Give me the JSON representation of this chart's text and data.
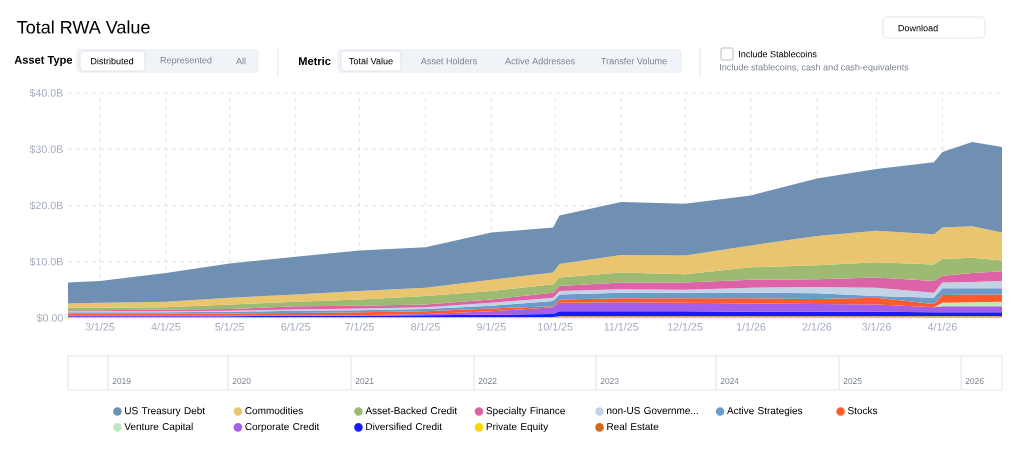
{
  "chart_data": {
    "type": "area",
    "title": "Total RWA Value",
    "stacked": true,
    "grid": true,
    "legend": "bottom",
    "annotations": [
      "Download",
      "Asset Type",
      "Distributed",
      "Represented",
      "All",
      "Metric",
      "Total Value",
      "Asset Holders",
      "Active Addresses",
      "Transfer Volume",
      "Include Stablecoins",
      "Include stablecoins, cash and cash-equivalents",
      "2019",
      "2020",
      "2021",
      "2022",
      "2023",
      "2024",
      "2025",
      "2026"
    ],
    "xlim": [
      "2025-02-14",
      "2026-04-29"
    ],
    "xticks": [
      {
        "value": "2025-03-01",
        "label": "3/1/25"
      },
      {
        "value": "2025-04-01",
        "label": "4/1/25"
      },
      {
        "value": "2025-05-01",
        "label": "5/1/25"
      },
      {
        "value": "2025-06-01",
        "label": "6/1/25"
      },
      {
        "value": "2025-07-01",
        "label": "7/1/25"
      },
      {
        "value": "2025-08-01",
        "label": "8/1/25"
      },
      {
        "value": "2025-09-01",
        "label": "9/1/25"
      },
      {
        "value": "2025-10-01",
        "label": "10/1/25"
      },
      {
        "value": "2025-11-01",
        "label": "11/1/25"
      },
      {
        "value": "2025-12-01",
        "label": "12/1/25"
      },
      {
        "value": "2026-01-01",
        "label": "1/1/26"
      },
      {
        "value": "2026-02-01",
        "label": "2/1/26"
      },
      {
        "value": "2026-03-01",
        "label": "3/1/26"
      },
      {
        "value": "2026-04-01",
        "label": "4/1/26"
      }
    ],
    "ylim": [
      0,
      40
    ],
    "yticks": [
      {
        "value": 0,
        "label": "$0.00"
      },
      {
        "value": 10,
        "label": "$10.0B"
      },
      {
        "value": 20,
        "label": "$20.0B"
      },
      {
        "value": 30,
        "label": "$30.0B"
      },
      {
        "value": 40,
        "label": "$40.0B"
      }
    ],
    "x": [
      "2025-02-14",
      "2025-03-01",
      "2025-04-01",
      "2025-05-01",
      "2025-06-01",
      "2025-07-01",
      "2025-08-01",
      "2025-09-01",
      "2025-09-30",
      "2025-10-03",
      "2025-11-01",
      "2025-12-01",
      "2026-01-01",
      "2026-02-01",
      "2026-03-01",
      "2026-03-28",
      "2026-04-01",
      "2026-04-15",
      "2026-04-29"
    ],
    "series": [
      {
        "name": "Real Estate",
        "color": "#d2691e",
        "values": [
          0.1,
          0.1,
          0.1,
          0.1,
          0.1,
          0.1,
          0.1,
          0.1,
          0.1,
          0.1,
          0.1,
          0.1,
          0.1,
          0.1,
          0.1,
          0.1,
          0.1,
          0.1,
          0.1
        ]
      },
      {
        "name": "Private Equity",
        "color": "#ffd700",
        "values": [
          0.1,
          0.1,
          0.1,
          0.1,
          0.1,
          0.1,
          0.1,
          0.1,
          0.1,
          0.2,
          0.2,
          0.2,
          0.2,
          0.2,
          0.2,
          0.2,
          0.2,
          0.2,
          0.2
        ]
      },
      {
        "name": "Diversified Credit",
        "color": "#1a1aff",
        "values": [
          0.1,
          0.1,
          0.1,
          0.1,
          0.2,
          0.2,
          0.3,
          0.4,
          0.5,
          0.9,
          0.9,
          0.9,
          0.8,
          0.8,
          0.8,
          0.7,
          0.7,
          0.7,
          0.7
        ]
      },
      {
        "name": "Corporate Credit",
        "color": "#a45ee8",
        "values": [
          0.1,
          0.1,
          0.1,
          0.1,
          0.1,
          0.1,
          0.2,
          0.6,
          1.2,
          1.5,
          1.6,
          1.5,
          1.5,
          1.4,
          1.3,
          0.9,
          1.1,
          1.1,
          1.1
        ]
      },
      {
        "name": "Venture Capital",
        "color": "#bfe8bf",
        "values": [
          null,
          null,
          null,
          null,
          null,
          null,
          null,
          null,
          null,
          null,
          null,
          null,
          null,
          null,
          null,
          0,
          0.6,
          0.7,
          0.8
        ]
      },
      {
        "name": "Stocks",
        "color": "#ff5a2a",
        "values": [
          0.4,
          0.4,
          0.4,
          0.4,
          0.4,
          0.5,
          0.5,
          0.5,
          0.2,
          0.6,
          0.7,
          0.8,
          0.9,
          0.9,
          1.2,
          0.6,
          1.4,
          1.4,
          1.3
        ]
      },
      {
        "name": "Active Strategies",
        "color": "#6a9bcb",
        "values": [
          0.2,
          0.2,
          0.2,
          0.3,
          0.4,
          0.4,
          0.4,
          0.5,
          0.9,
          0.9,
          1.0,
          1.0,
          1.0,
          1.0,
          0.3,
          1.1,
          1.2,
          1.1,
          1.1
        ]
      },
      {
        "name": "non-US Governme...",
        "color": "#c3d3e6",
        "values": [
          0.2,
          0.2,
          0.2,
          0.2,
          0.2,
          0.3,
          0.3,
          0.5,
          0.6,
          0.6,
          0.6,
          0.5,
          0.9,
          1.1,
          1.5,
          0.9,
          1.0,
          1.1,
          1.3
        ]
      },
      {
        "name": "Specialty Finance",
        "color": "#de62a8",
        "values": [
          0.2,
          0.2,
          0.3,
          0.3,
          0.6,
          0.5,
          0.5,
          0.6,
          0.9,
          0.9,
          1.2,
          1.3,
          1.4,
          1.4,
          1.8,
          2.1,
          1.2,
          1.6,
          1.7
        ]
      },
      {
        "name": "Asset-Backed Credit",
        "color": "#9dba72",
        "values": [
          0.4,
          0.4,
          0.4,
          0.8,
          0.8,
          1.1,
          1.5,
          1.5,
          1.5,
          1.5,
          1.8,
          1.5,
          2.2,
          2.5,
          2.7,
          2.9,
          3.0,
          2.7,
          1.9
        ]
      },
      {
        "name": "Commodities",
        "color": "#e8c56e",
        "values": [
          0.8,
          0.9,
          1.0,
          1.2,
          1.3,
          1.5,
          1.5,
          2.0,
          2.1,
          2.4,
          3.1,
          3.3,
          3.9,
          5.2,
          5.6,
          5.4,
          5.6,
          5.6,
          5.0
        ]
      },
      {
        "name": "US Treasury Debt",
        "color": "#6f8fb3",
        "values": [
          3.7,
          3.9,
          5.1,
          6.1,
          6.7,
          7.2,
          7.2,
          8.4,
          8.0,
          8.6,
          9.4,
          9.2,
          8.9,
          10.2,
          11.0,
          12.8,
          13.4,
          15.0,
          15.2
        ]
      }
    ]
  }
}
